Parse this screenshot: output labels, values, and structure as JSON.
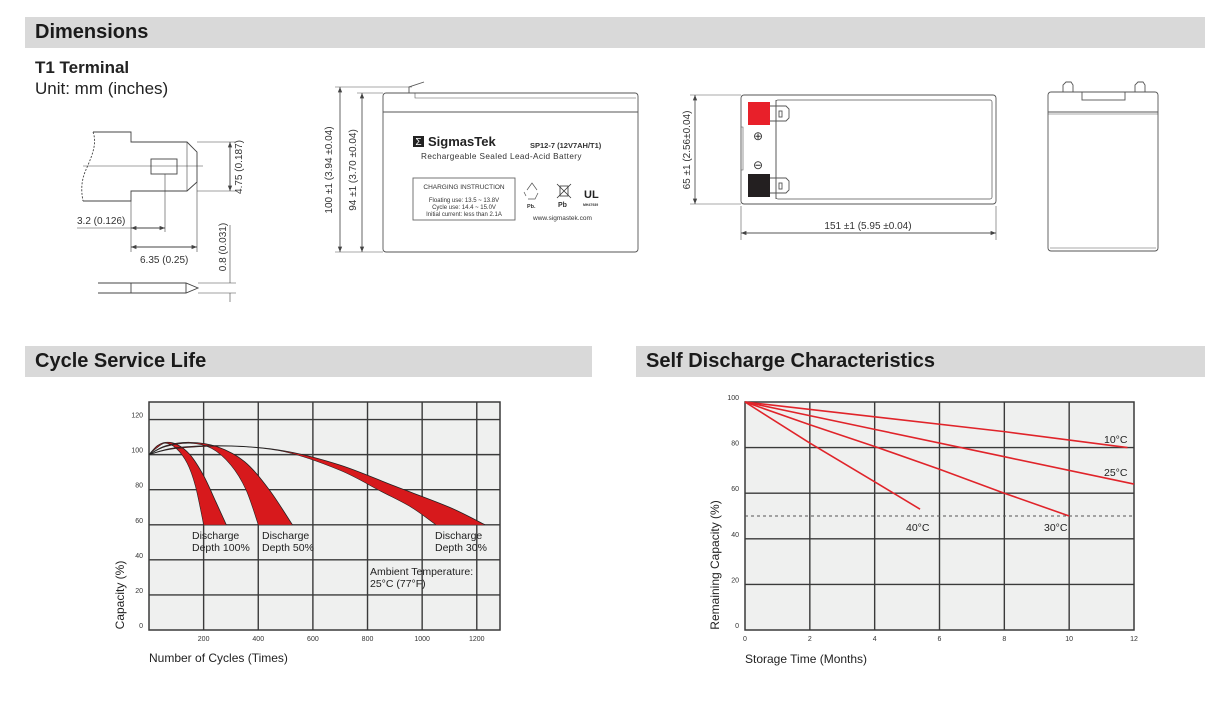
{
  "sections": {
    "dimensions": "Dimensions",
    "cycle": "Cycle Service Life",
    "self_discharge": "Self Discharge Characteristics"
  },
  "terminal": {
    "title": "T1 Terminal",
    "unit": "Unit: mm (inches)",
    "dim_height": "4.75 (0.187)",
    "dim_hole": "3.2 (0.126)",
    "dim_width": "6.35 (0.25)",
    "dim_thickness": "0.8 (0.031)"
  },
  "battery_front": {
    "dim_total_height": "100 ±1 (3.94 ±0.04)",
    "dim_case_height": "94 ±1 (3.70 ±0.04)",
    "brand": "SigmasTek",
    "model": "SP12-7 (12V7AH/T1)",
    "description": "Rechargeable Sealed Lead-Acid Battery",
    "charging": {
      "title": "CHARGING INSTRUCTION",
      "lines": [
        "Floating use: 13.5 ~ 13.8V",
        "Cycle use: 14.4 ~ 15.0V",
        "Initial current: less than 2.1A"
      ]
    },
    "icons": {
      "recycle_label": "Pb.",
      "bin_label": "Pb",
      "ul_code": "MH47939"
    },
    "website": "www.sigmastek.com"
  },
  "battery_top": {
    "dim_width": "65 ±1 (2.56±0.04)",
    "dim_length": "151 ±1 (5.95 ±0.04)",
    "positive_symbol": "⊕",
    "negative_symbol": "⊖",
    "colors": {
      "positive": "#e8202a",
      "negative": "#231f20"
    }
  },
  "chart_data": [
    {
      "type": "area",
      "title": "Cycle Service Life",
      "xlabel": "Number of Cycles (Times)",
      "ylabel": "Capacity (%)",
      "xlim": [
        0,
        1285
      ],
      "ylim": [
        0,
        130
      ],
      "xticks": [
        200,
        400,
        600,
        800,
        1000,
        1200
      ],
      "yticks": [
        0,
        20,
        40,
        60,
        80,
        100,
        120
      ],
      "grid": true,
      "colors": {
        "band": "#d7191c",
        "plot_bg": "#eff0ef",
        "grid": "#3a3a3a"
      },
      "series": [
        {
          "name": "Discharge Depth 100%",
          "upper": [
            [
              0,
              100
            ],
            [
              30,
              105
            ],
            [
              60,
              107
            ],
            [
              100,
              106
            ],
            [
              150,
              100
            ],
            [
              200,
              88
            ],
            [
              245,
              73
            ],
            [
              283,
              60
            ]
          ],
          "lower": [
            [
              0,
              100
            ],
            [
              30,
              104
            ],
            [
              60,
              106.5
            ],
            [
              100,
              103.5
            ],
            [
              140,
              95
            ],
            [
              170,
              82
            ],
            [
              200,
              60
            ]
          ]
        },
        {
          "name": "Discharge Depth 50%",
          "upper": [
            [
              0,
              100
            ],
            [
              60,
              105
            ],
            [
              150,
              107
            ],
            [
              250,
              104.5
            ],
            [
              350,
              96
            ],
            [
              440,
              80
            ],
            [
              525,
              60
            ]
          ],
          "lower": [
            [
              0,
              100
            ],
            [
              60,
              104.5
            ],
            [
              150,
              106.5
            ],
            [
              230,
              103.5
            ],
            [
              300,
              94
            ],
            [
              355,
              80
            ],
            [
              400,
              60
            ]
          ]
        },
        {
          "name": "Discharge Depth 30%",
          "upper": [
            [
              0,
              100
            ],
            [
              100,
              104
            ],
            [
              300,
              105
            ],
            [
              500,
              102
            ],
            [
              700,
              94
            ],
            [
              900,
              82
            ],
            [
              1100,
              70
            ],
            [
              1230,
              60
            ]
          ],
          "lower": [
            [
              0,
              100
            ],
            [
              100,
              103.5
            ],
            [
              300,
              104.8
            ],
            [
              500,
              101.5
            ],
            [
              700,
              91
            ],
            [
              850,
              79
            ],
            [
              960,
              70
            ],
            [
              1050,
              60
            ]
          ]
        }
      ],
      "labels": [
        {
          "lines": [
            "Discharge",
            "Depth 100%"
          ]
        },
        {
          "lines": [
            "Discharge",
            "Depth 50%"
          ]
        },
        {
          "lines": [
            "Discharge",
            "Depth 30%"
          ]
        },
        {
          "lines": [
            "Ambient Temperature:",
            "25°C (77°F)"
          ]
        }
      ]
    },
    {
      "type": "line",
      "title": "Self Discharge Characteristics",
      "xlabel": "Storage Time (Months)",
      "ylabel": "Remaining Capacity (%)",
      "xlim": [
        0,
        12
      ],
      "ylim": [
        0,
        100
      ],
      "xticks": [
        0,
        2,
        4,
        6,
        8,
        10,
        12
      ],
      "yticks": [
        0,
        20,
        40,
        60,
        80,
        100
      ],
      "grid": true,
      "reference_line": 50,
      "colors": {
        "line": "#e0242a",
        "plot_bg": "#eff0ef",
        "grid": "#3a3a3a"
      },
      "series": [
        {
          "name": "10°C",
          "points": [
            [
              0,
              100
            ],
            [
              4,
              93.5
            ],
            [
              8,
              87
            ],
            [
              11.8,
              80
            ]
          ]
        },
        {
          "name": "25°C",
          "points": [
            [
              0,
              100
            ],
            [
              4,
              88
            ],
            [
              8,
              76
            ],
            [
              12,
              64
            ]
          ]
        },
        {
          "name": "30°C",
          "points": [
            [
              0,
              100
            ],
            [
              2,
              90
            ],
            [
              4,
              80.5
            ],
            [
              6,
              70.5
            ],
            [
              8,
              60
            ],
            [
              10,
              50
            ]
          ]
        },
        {
          "name": "40°C",
          "points": [
            [
              0,
              100
            ],
            [
              2,
              82
            ],
            [
              4,
              65
            ],
            [
              5.4,
              53
            ]
          ]
        }
      ]
    }
  ]
}
